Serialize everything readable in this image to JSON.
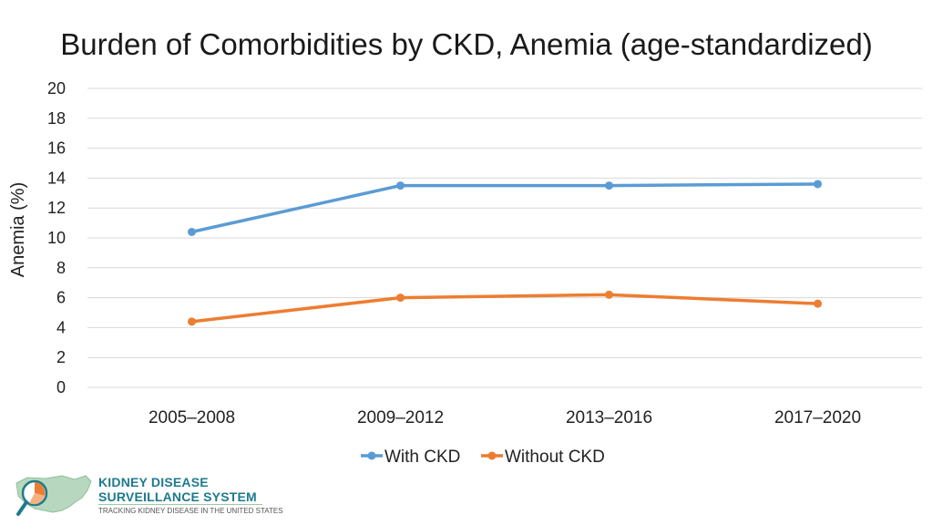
{
  "colors": {
    "with_ckd": "#5b9bd5",
    "without_ckd": "#ed7d31",
    "grid": "#d9d9d9"
  },
  "chart_data": {
    "type": "line",
    "title": "Burden of Comorbidities by CKD, Anemia (age-standardized)",
    "xlabel": "",
    "ylabel": "Anemia (%)",
    "categories": [
      "2005–2008",
      "2009–2012",
      "2013–2016",
      "2017–2020"
    ],
    "ylim": [
      0,
      20
    ],
    "yticks": [
      0,
      2,
      4,
      6,
      8,
      10,
      12,
      14,
      16,
      18,
      20
    ],
    "grid": true,
    "legend_position": "bottom",
    "series": [
      {
        "name": "With CKD",
        "values": [
          10.4,
          13.5,
          13.5,
          13.6
        ]
      },
      {
        "name": "Without CKD",
        "values": [
          4.4,
          6.0,
          6.2,
          5.6
        ]
      }
    ]
  },
  "logo": {
    "line1": "KIDNEY DISEASE",
    "line2": "SURVEILLANCE SYSTEM",
    "tagline": "TRACKING KIDNEY DISEASE IN THE UNITED STATES"
  }
}
